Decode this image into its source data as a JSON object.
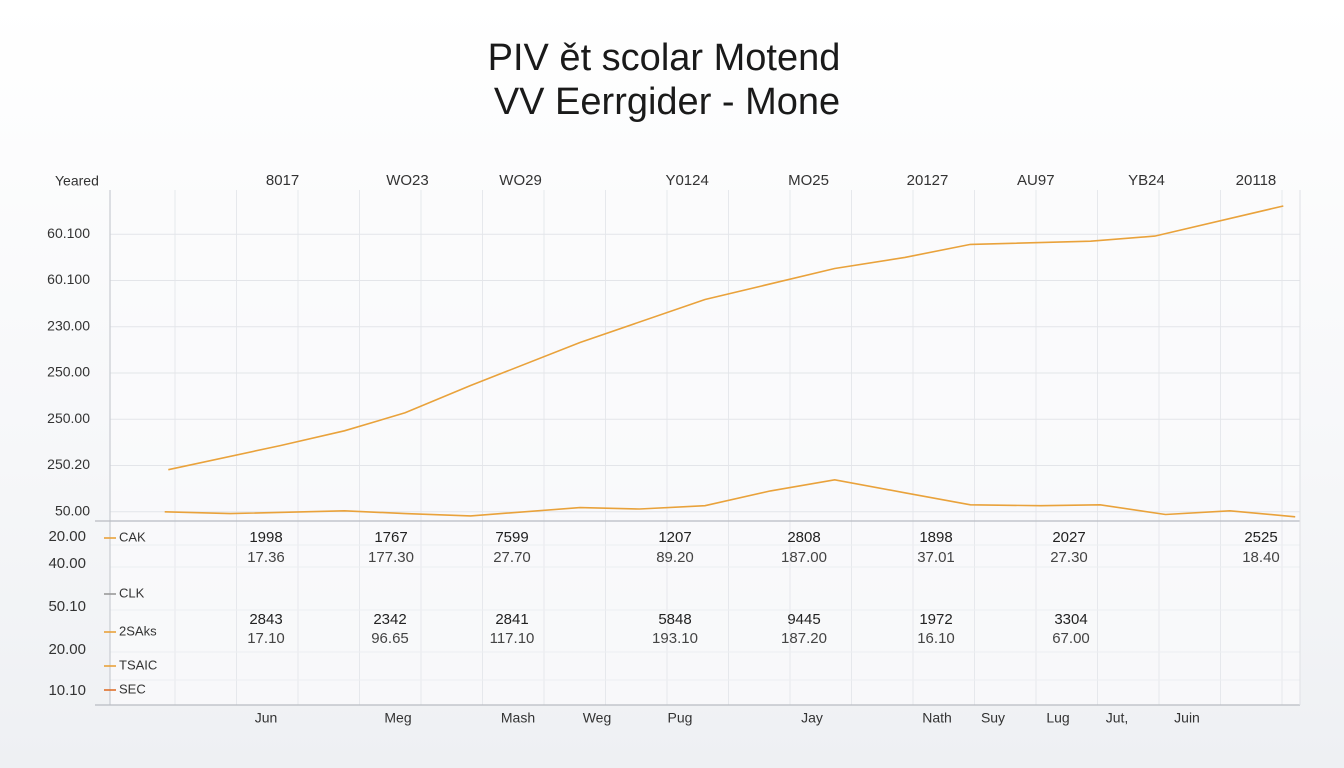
{
  "chart_data": {
    "type": "line",
    "title": "PIV ět scolar Motend",
    "subtitle": "VV Eerrgider - Mone",
    "y_label": "Yeared",
    "xlim": [
      0,
      100
    ],
    "xticks": [
      {
        "value": 14.5,
        "label": "8017"
      },
      {
        "value": 25.0,
        "label": "WO23"
      },
      {
        "value": 34.5,
        "label": "WO29"
      },
      {
        "value": 48.5,
        "label": "Y0124"
      },
      {
        "value": 58.7,
        "label": "MO25"
      },
      {
        "value": 68.7,
        "label": "20127"
      },
      {
        "value": 77.8,
        "label": "AU97"
      },
      {
        "value": 87.1,
        "label": "YB24"
      },
      {
        "value": 96.3,
        "label": "20118"
      }
    ],
    "ylim": [
      -0.2,
      7
    ],
    "yticks": [
      {
        "value": 0,
        "label": "50.00"
      },
      {
        "value": 1,
        "label": "250.20"
      },
      {
        "value": 2,
        "label": "250.00"
      },
      {
        "value": 3,
        "label": "250.00"
      },
      {
        "value": 4,
        "label": "230.00"
      },
      {
        "value": 5,
        "label": "60.100"
      },
      {
        "value": 6,
        "label": "60.100"
      }
    ],
    "grid": true,
    "series": [
      {
        "color": "#e9a23b",
        "x": [
          4.9,
          14.3,
          19.7,
          24.8,
          30.3,
          39.5,
          50.0,
          60.9,
          66.8,
          72.3,
          82.4,
          87.8,
          98.6
        ],
        "values": [
          0.91,
          1.43,
          1.75,
          2.14,
          2.73,
          3.66,
          4.59,
          5.26,
          5.5,
          5.78,
          5.85,
          5.96,
          6.61
        ]
      },
      {
        "color": "#e9a23b",
        "x": [
          4.6,
          10.1,
          19.7,
          24.8,
          30.3,
          39.5,
          44.5,
          50.0,
          55.5,
          60.9,
          66.8,
          72.3,
          78.2,
          83.2,
          88.7,
          94.1,
          99.6
        ],
        "values": [
          0,
          -0.04,
          0.02,
          -0.04,
          -0.09,
          0.09,
          0.06,
          0.13,
          0.45,
          0.69,
          0.41,
          0.15,
          0.13,
          0.15,
          -0.06,
          0.02,
          -0.11
        ]
      }
    ]
  },
  "table": {
    "row_labels": [
      "20.00",
      "40.00",
      "50.10",
      "20.00",
      "10.10"
    ],
    "legend": [
      {
        "label": "CAK",
        "color": "#e9a23b"
      },
      {
        "label": "CLK",
        "color": "#999999"
      },
      {
        "label": "2SAks",
        "color": "#e9a23b"
      },
      {
        "label": "TSAIC",
        "color": "#e9a23b"
      },
      {
        "label": "SEC",
        "color": "#e0702a"
      }
    ],
    "rows": [
      [
        [
          "1998",
          "17.36"
        ],
        [
          "1767",
          "177.30"
        ],
        [
          "7599",
          "27.70"
        ],
        [
          "1207",
          "89.20"
        ],
        [
          "2808",
          "187.00"
        ],
        [
          "1898",
          "37.01"
        ],
        [
          "2027",
          "27.30"
        ],
        [
          "2525",
          "18.40"
        ]
      ],
      [
        [
          "2843",
          "17.10"
        ],
        [
          "2342",
          "96.65"
        ],
        [
          "2841",
          "117.10"
        ],
        [
          "5848",
          "193.10"
        ],
        [
          "9445",
          "187.20"
        ],
        [
          "1972",
          "16.10"
        ],
        [
          "3304",
          "67.00"
        ]
      ]
    ],
    "bottom_labels": [
      "Jun",
      "Meg",
      "Mash",
      "Weg",
      "Pug",
      "Jay",
      "Nath",
      "Suy",
      "Lug",
      "Jut,",
      "Juin"
    ]
  }
}
